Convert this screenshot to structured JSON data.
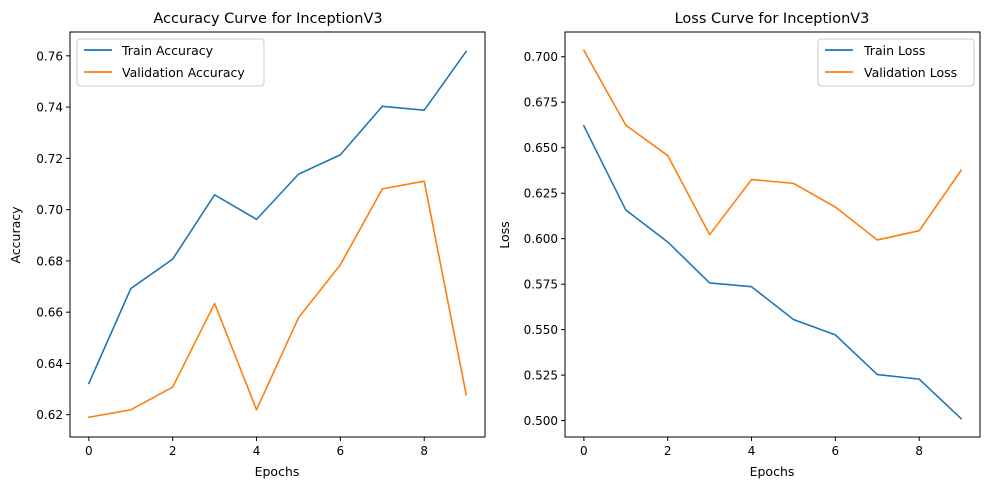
{
  "chart_data": [
    {
      "type": "line",
      "title": "Accuracy Curve for InceptionV3",
      "xlabel": "Epochs",
      "ylabel": "Accuracy",
      "x": [
        0,
        1,
        2,
        3,
        4,
        5,
        6,
        7,
        8,
        9
      ],
      "xlim": [
        -0.45,
        9.45
      ],
      "ylim": [
        0.6113,
        0.7693
      ],
      "xticks": [
        0,
        2,
        4,
        6,
        8
      ],
      "yticks": [
        0.62,
        0.64,
        0.66,
        0.68,
        0.7,
        0.72,
        0.74,
        0.76
      ],
      "ytick_labels": [
        "0.62",
        "0.64",
        "0.66",
        "0.68",
        "0.70",
        "0.72",
        "0.74",
        "0.76"
      ],
      "legend_position": "upper-left",
      "grid": false,
      "series": [
        {
          "name": "Train Accuracy",
          "color": "#1f77b4",
          "values": [
            0.6322,
            0.6692,
            0.6807,
            0.7058,
            0.6962,
            0.7138,
            0.7214,
            0.7403,
            0.7388,
            0.7617
          ]
        },
        {
          "name": "Validation Accuracy",
          "color": "#ff7f0e",
          "values": [
            0.619,
            0.6219,
            0.6308,
            0.6634,
            0.6219,
            0.6578,
            0.6785,
            0.7081,
            0.7111,
            0.6279
          ]
        }
      ]
    },
    {
      "type": "line",
      "title": "Loss Curve for InceptionV3",
      "xlabel": "Epochs",
      "ylabel": "Loss",
      "x": [
        0,
        1,
        2,
        3,
        4,
        5,
        6,
        7,
        8,
        9
      ],
      "xlim": [
        -0.45,
        9.45
      ],
      "ylim": [
        0.491,
        0.7136
      ],
      "xticks": [
        0,
        2,
        4,
        6,
        8
      ],
      "yticks": [
        0.5,
        0.525,
        0.55,
        0.575,
        0.6,
        0.625,
        0.65,
        0.675,
        0.7
      ],
      "ytick_labels": [
        "0.500",
        "0.525",
        "0.550",
        "0.575",
        "0.600",
        "0.625",
        "0.650",
        "0.675",
        "0.700"
      ],
      "legend_position": "upper-right",
      "grid": false,
      "series": [
        {
          "name": "Train Loss",
          "color": "#1f77b4",
          "values": [
            0.662,
            0.6158,
            0.5982,
            0.5757,
            0.5736,
            0.5556,
            0.5471,
            0.5253,
            0.5228,
            0.5011
          ]
        },
        {
          "name": "Validation Loss",
          "color": "#ff7f0e",
          "values": [
            0.7035,
            0.6624,
            0.6457,
            0.6022,
            0.6325,
            0.6304,
            0.6174,
            0.5993,
            0.6044,
            0.6376
          ]
        }
      ]
    }
  ]
}
